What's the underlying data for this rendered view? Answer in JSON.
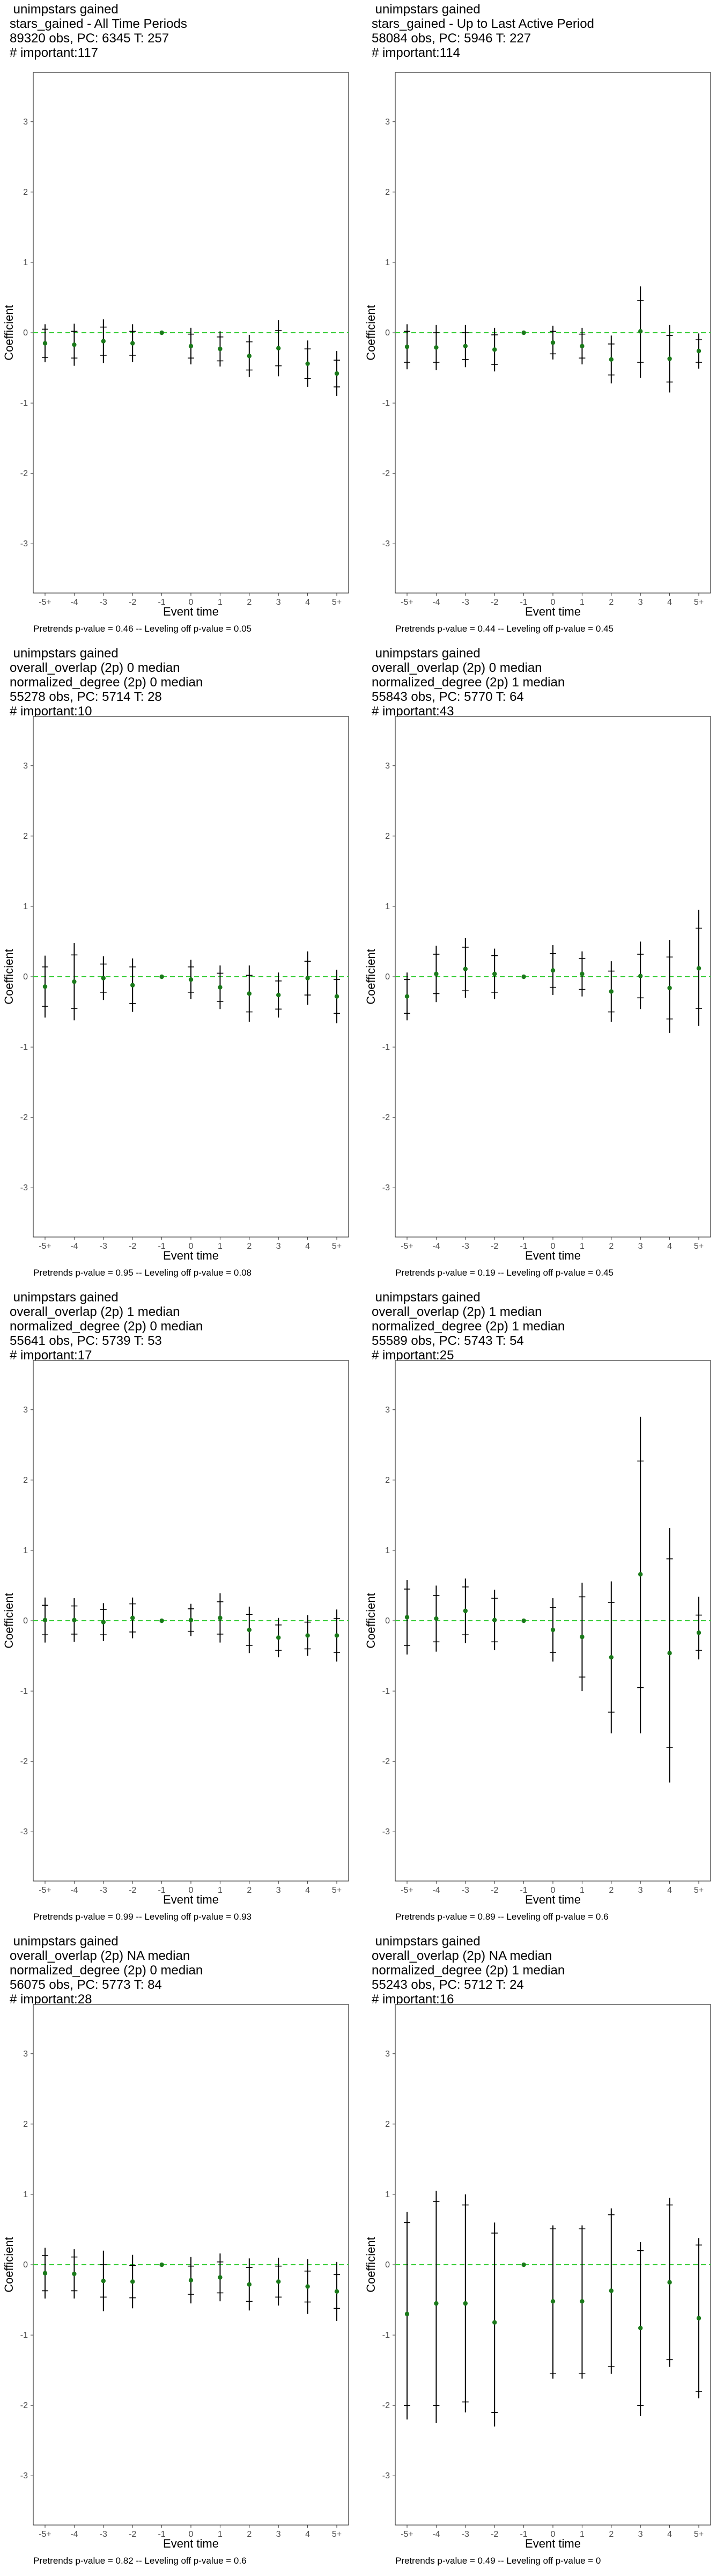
{
  "chart_data": [
    {
      "type": "scatter",
      "title_lines": [
        " unimpstars gained",
        "stars_gained - All Time Periods",
        "89320 obs, PC: 6345 T: 257",
        "# important:117"
      ],
      "xlabel": "Event time",
      "ylabel": "Coefficient",
      "categories": [
        "-5+",
        "-4",
        "-3",
        "-2",
        "-1",
        "0",
        "1",
        "2",
        "3",
        "4",
        "5+"
      ],
      "ylim": [
        -3.7,
        3.7
      ],
      "yticks": [
        -3,
        -2,
        -1,
        0,
        1,
        2,
        3
      ],
      "reference_line": 0,
      "series": [
        {
          "estimate": [
            -0.15,
            -0.17,
            -0.12,
            -0.15,
            0.0,
            -0.19,
            -0.23,
            -0.33,
            -0.22,
            -0.44,
            -0.58
          ],
          "inner_low": [
            -0.35,
            -0.36,
            -0.32,
            -0.32,
            0.0,
            -0.36,
            -0.4,
            -0.53,
            -0.47,
            -0.65,
            -0.77
          ],
          "inner_high": [
            0.05,
            0.02,
            0.08,
            0.02,
            0.0,
            -0.02,
            -0.06,
            -0.13,
            0.03,
            -0.23,
            -0.39
          ],
          "outer_low": [
            -0.42,
            -0.47,
            -0.43,
            -0.42,
            0.0,
            -0.45,
            -0.48,
            -0.63,
            -0.62,
            -0.77,
            -0.9
          ],
          "outer_high": [
            0.12,
            0.13,
            0.19,
            0.12,
            0.0,
            0.07,
            0.02,
            -0.03,
            0.18,
            -0.11,
            -0.26
          ]
        }
      ],
      "footnote": "Pretrends p-value = 0.46 -- Leveling off p-value = 0.05"
    },
    {
      "type": "scatter",
      "title_lines": [
        " unimpstars gained",
        "stars_gained - Up to Last Active Period",
        "58084 obs, PC: 5946 T: 227",
        "# important:114"
      ],
      "xlabel": "Event time",
      "ylabel": "Coefficient",
      "categories": [
        "-5+",
        "-4",
        "-3",
        "-2",
        "-1",
        "0",
        "1",
        "2",
        "3",
        "4",
        "5+"
      ],
      "ylim": [
        -3.7,
        3.7
      ],
      "yticks": [
        -3,
        -2,
        -1,
        0,
        1,
        2,
        3
      ],
      "reference_line": 0,
      "series": [
        {
          "estimate": [
            -0.2,
            -0.21,
            -0.19,
            -0.24,
            0.0,
            -0.14,
            -0.19,
            -0.38,
            0.02,
            -0.37,
            -0.26
          ],
          "inner_low": [
            -0.42,
            -0.42,
            -0.38,
            -0.45,
            0.0,
            -0.3,
            -0.36,
            -0.6,
            -0.42,
            -0.7,
            -0.42
          ],
          "inner_high": [
            0.02,
            0.0,
            0.0,
            -0.03,
            0.0,
            0.02,
            -0.02,
            -0.16,
            0.46,
            -0.04,
            -0.1
          ],
          "outer_low": [
            -0.52,
            -0.53,
            -0.49,
            -0.55,
            0.0,
            -0.38,
            -0.45,
            -0.72,
            -0.64,
            -0.85,
            -0.51
          ],
          "outer_high": [
            0.12,
            0.11,
            0.11,
            0.07,
            0.0,
            0.1,
            0.07,
            -0.04,
            0.66,
            0.11,
            -0.01
          ]
        }
      ],
      "footnote": "Pretrends p-value = 0.44 -- Leveling off p-value = 0.45"
    },
    {
      "type": "scatter",
      "title_lines": [
        " unimpstars gained",
        "overall_overlap (2p) 0 median",
        "normalized_degree (2p) 0 median",
        "55278 obs, PC: 5714 T: 28",
        "# important:10"
      ],
      "xlabel": "Event time",
      "ylabel": "Coefficient",
      "categories": [
        "-5+",
        "-4",
        "-3",
        "-2",
        "-1",
        "0",
        "1",
        "2",
        "3",
        "4",
        "5+"
      ],
      "ylim": [
        -3.7,
        3.7
      ],
      "yticks": [
        -3,
        -2,
        -1,
        0,
        1,
        2,
        3
      ],
      "reference_line": 0,
      "series": [
        {
          "estimate": [
            -0.14,
            -0.07,
            -0.02,
            -0.12,
            0.0,
            -0.04,
            -0.15,
            -0.24,
            -0.26,
            -0.02,
            -0.28
          ],
          "inner_low": [
            -0.42,
            -0.45,
            -0.22,
            -0.38,
            0.0,
            -0.22,
            -0.35,
            -0.5,
            -0.46,
            -0.26,
            -0.52
          ],
          "inner_high": [
            0.14,
            0.31,
            0.18,
            0.14,
            0.0,
            0.14,
            0.05,
            0.02,
            -0.06,
            0.22,
            -0.04
          ],
          "outer_low": [
            -0.58,
            -0.62,
            -0.33,
            -0.5,
            0.0,
            -0.32,
            -0.46,
            -0.64,
            -0.58,
            -0.4,
            -0.66
          ],
          "outer_high": [
            0.3,
            0.48,
            0.29,
            0.26,
            0.0,
            0.24,
            0.16,
            0.16,
            0.06,
            0.36,
            0.1
          ]
        }
      ],
      "footnote": "Pretrends p-value = 0.95 -- Leveling off p-value = 0.08"
    },
    {
      "type": "scatter",
      "title_lines": [
        " unimpstars gained",
        "overall_overlap (2p) 0 median",
        "normalized_degree (2p) 1 median",
        "55843 obs, PC: 5770 T: 64",
        "# important:43"
      ],
      "xlabel": "Event time",
      "ylabel": "Coefficient",
      "categories": [
        "-5+",
        "-4",
        "-3",
        "-2",
        "-1",
        "0",
        "1",
        "2",
        "3",
        "4",
        "5+"
      ],
      "ylim": [
        -3.7,
        3.7
      ],
      "yticks": [
        -3,
        -2,
        -1,
        0,
        1,
        2,
        3
      ],
      "reference_line": 0,
      "series": [
        {
          "estimate": [
            -0.28,
            0.04,
            0.11,
            0.04,
            0.0,
            0.09,
            0.04,
            -0.21,
            0.01,
            -0.16,
            0.12
          ],
          "inner_low": [
            -0.52,
            -0.24,
            -0.2,
            -0.22,
            0.0,
            -0.15,
            -0.18,
            -0.5,
            -0.3,
            -0.6,
            -0.45
          ],
          "inner_high": [
            -0.04,
            0.32,
            0.42,
            0.3,
            0.0,
            0.33,
            0.26,
            0.08,
            0.32,
            0.28,
            0.69
          ],
          "outer_low": [
            -0.62,
            -0.36,
            -0.3,
            -0.32,
            0.0,
            -0.26,
            -0.28,
            -0.64,
            -0.46,
            -0.8,
            -0.7
          ],
          "outer_high": [
            0.06,
            0.44,
            0.55,
            0.4,
            0.0,
            0.45,
            0.36,
            0.22,
            0.5,
            0.52,
            0.95
          ]
        }
      ],
      "footnote": "Pretrends p-value = 0.19 -- Leveling off p-value = 0.45"
    },
    {
      "type": "scatter",
      "title_lines": [
        " unimpstars gained",
        "overall_overlap (2p) 1 median",
        "normalized_degree (2p) 0 median",
        "55641 obs, PC: 5739 T: 53",
        "# important:17"
      ],
      "xlabel": "Event time",
      "ylabel": "Coefficient",
      "categories": [
        "-5+",
        "-4",
        "-3",
        "-2",
        "-1",
        "0",
        "1",
        "2",
        "3",
        "4",
        "5+"
      ],
      "ylim": [
        -3.7,
        3.7
      ],
      "yticks": [
        -3,
        -2,
        -1,
        0,
        1,
        2,
        3
      ],
      "reference_line": 0,
      "series": [
        {
          "estimate": [
            0.01,
            0.01,
            -0.02,
            0.04,
            0.0,
            0.01,
            0.04,
            -0.13,
            -0.24,
            -0.21,
            -0.21
          ],
          "inner_low": [
            -0.2,
            -0.19,
            -0.2,
            -0.16,
            0.0,
            -0.15,
            -0.19,
            -0.35,
            -0.42,
            -0.4,
            -0.45
          ],
          "inner_high": [
            0.22,
            0.21,
            0.16,
            0.24,
            0.0,
            0.17,
            0.27,
            0.09,
            -0.06,
            -0.02,
            0.03
          ],
          "outer_low": [
            -0.31,
            -0.3,
            -0.29,
            -0.25,
            0.0,
            -0.22,
            -0.31,
            -0.46,
            -0.52,
            -0.5,
            -0.58
          ],
          "outer_high": [
            0.33,
            0.32,
            0.25,
            0.33,
            0.0,
            0.24,
            0.39,
            0.2,
            0.04,
            0.08,
            0.16
          ]
        }
      ],
      "footnote": "Pretrends p-value = 0.99 -- Leveling off p-value = 0.93"
    },
    {
      "type": "scatter",
      "title_lines": [
        " unimpstars gained",
        "overall_overlap (2p) 1 median",
        "normalized_degree (2p) 1 median",
        "55589 obs, PC: 5743 T: 54",
        "# important:25"
      ],
      "xlabel": "Event time",
      "ylabel": "Coefficient",
      "categories": [
        "-5+",
        "-4",
        "-3",
        "-2",
        "-1",
        "0",
        "1",
        "2",
        "3",
        "4",
        "5+"
      ],
      "ylim": [
        -3.7,
        3.7
      ],
      "yticks": [
        -3,
        -2,
        -1,
        0,
        1,
        2,
        3
      ],
      "reference_line": 0,
      "series": [
        {
          "estimate": [
            0.05,
            0.03,
            0.14,
            0.01,
            0.0,
            -0.13,
            -0.23,
            -0.52,
            0.66,
            -0.46,
            -0.17
          ],
          "inner_low": [
            -0.35,
            -0.3,
            -0.2,
            -0.3,
            0.0,
            -0.45,
            -0.8,
            -1.3,
            -0.95,
            -1.8,
            -0.42
          ],
          "inner_high": [
            0.45,
            0.36,
            0.48,
            0.32,
            0.0,
            0.19,
            0.34,
            0.26,
            2.27,
            0.88,
            0.08
          ],
          "outer_low": [
            -0.48,
            -0.44,
            -0.32,
            -0.42,
            0.0,
            -0.58,
            -1.0,
            -1.6,
            -1.6,
            -2.3,
            -0.55
          ],
          "outer_high": [
            0.58,
            0.5,
            0.6,
            0.44,
            0.0,
            0.32,
            0.54,
            0.56,
            2.9,
            1.32,
            0.34
          ]
        }
      ],
      "footnote": "Pretrends p-value = 0.89 -- Leveling off p-value = 0.6"
    },
    {
      "type": "scatter",
      "title_lines": [
        " unimpstars gained",
        "overall_overlap (2p) NA median",
        "normalized_degree (2p) 0 median",
        "56075 obs, PC: 5773 T: 84",
        "# important:28"
      ],
      "xlabel": "Event time",
      "ylabel": "Coefficient",
      "categories": [
        "-5+",
        "-4",
        "-3",
        "-2",
        "-1",
        "0",
        "1",
        "2",
        "3",
        "4",
        "5+"
      ],
      "ylim": [
        -3.7,
        3.7
      ],
      "yticks": [
        -3,
        -2,
        -1,
        0,
        1,
        2,
        3
      ],
      "reference_line": 0,
      "series": [
        {
          "estimate": [
            -0.12,
            -0.13,
            -0.23,
            -0.24,
            0.0,
            -0.22,
            -0.18,
            -0.28,
            -0.24,
            -0.31,
            -0.38
          ],
          "inner_low": [
            -0.37,
            -0.37,
            -0.46,
            -0.47,
            0.0,
            -0.42,
            -0.4,
            -0.52,
            -0.46,
            -0.53,
            -0.62
          ],
          "inner_high": [
            0.13,
            0.11,
            0.0,
            -0.01,
            0.0,
            -0.02,
            0.04,
            -0.04,
            -0.02,
            -0.09,
            -0.14
          ],
          "outer_low": [
            -0.48,
            -0.48,
            -0.66,
            -0.62,
            0.0,
            -0.55,
            -0.52,
            -0.65,
            -0.58,
            -0.7,
            -0.8
          ],
          "outer_high": [
            0.24,
            0.22,
            0.2,
            0.14,
            0.0,
            0.11,
            0.16,
            0.09,
            0.1,
            0.08,
            0.04
          ]
        }
      ],
      "footnote": "Pretrends p-value = 0.82 -- Leveling off p-value = 0.6"
    },
    {
      "type": "scatter",
      "title_lines": [
        " unimpstars gained",
        "overall_overlap (2p) NA median",
        "normalized_degree (2p) 1 median",
        "55243 obs, PC: 5712 T: 24",
        "# important:16"
      ],
      "xlabel": "Event time",
      "ylabel": "Coefficient",
      "categories": [
        "-5+",
        "-4",
        "-3",
        "-2",
        "-1",
        "0",
        "1",
        "2",
        "3",
        "4",
        "5+"
      ],
      "ylim": [
        -3.7,
        3.7
      ],
      "yticks": [
        -3,
        -2,
        -1,
        0,
        1,
        2,
        3
      ],
      "reference_line": 0,
      "series": [
        {
          "estimate": [
            -0.7,
            -0.55,
            -0.55,
            -0.82,
            0.0,
            -0.52,
            -0.52,
            -0.37,
            -0.9,
            -0.25,
            -0.76
          ],
          "inner_low": [
            -2.0,
            -2.0,
            -1.95,
            -2.1,
            0.0,
            -1.55,
            -1.55,
            -1.45,
            -2.0,
            -1.35,
            -1.8
          ],
          "inner_high": [
            0.6,
            0.9,
            0.85,
            0.45,
            0.0,
            0.51,
            0.51,
            0.71,
            0.2,
            0.85,
            0.28
          ],
          "outer_low": [
            -2.2,
            -2.25,
            -2.1,
            -2.3,
            0.0,
            -1.62,
            -1.62,
            -1.55,
            -2.15,
            -1.45,
            -1.9
          ],
          "outer_high": [
            0.75,
            1.05,
            1.0,
            0.6,
            0.0,
            0.56,
            0.56,
            0.8,
            0.32,
            0.95,
            0.38
          ]
        }
      ],
      "footnote": "Pretrends p-value = 0.49 -- Leveling off p-value = 0"
    }
  ],
  "colors": {
    "point": "#1a7a1a",
    "zero_line": "#33cc33",
    "error_bar": "#000000",
    "panel_border": "#333333",
    "tick_text": "#4d4d4d"
  }
}
